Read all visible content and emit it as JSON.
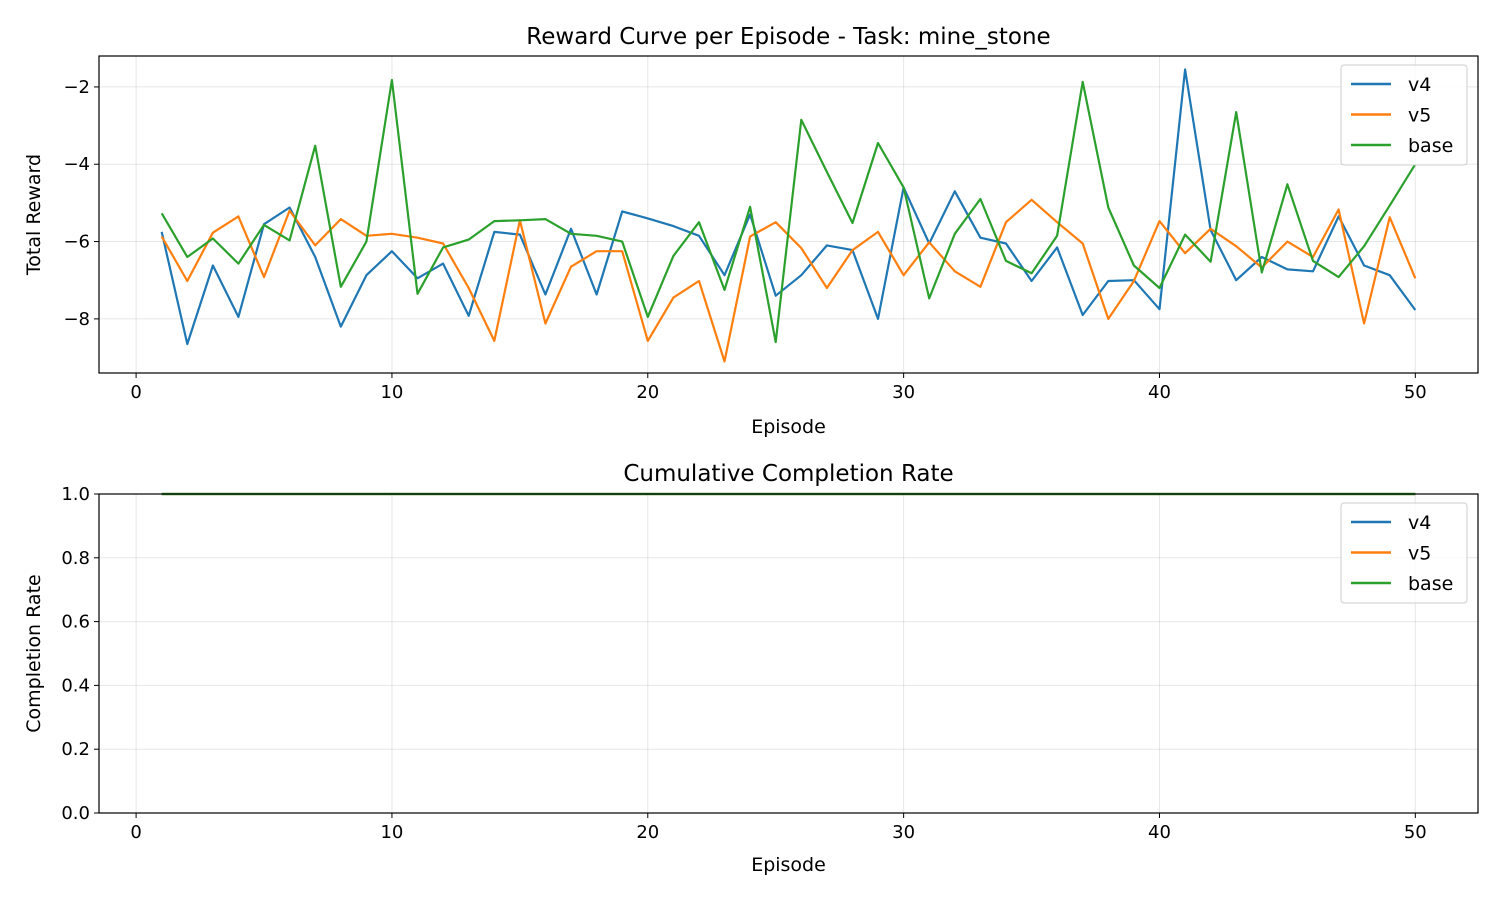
{
  "colors": {
    "v4": "#1f77b4",
    "v5": "#ff7f0e",
    "base": "#2ca02c"
  },
  "chart_data": [
    {
      "type": "line",
      "title": "Reward Curve per Episode - Task: mine_stone",
      "xlabel": "Episode",
      "ylabel": "Total Reward",
      "xlim": [
        -1.45,
        52.45
      ],
      "ylim": [
        -9.4,
        -1.2
      ],
      "xticks": [
        0,
        10,
        20,
        30,
        40,
        50
      ],
      "xtick_labels": [
        "0",
        "10",
        "20",
        "30",
        "40",
        "50"
      ],
      "yticks": [
        -8,
        -6,
        -4,
        -2
      ],
      "ytick_labels": [
        "−8",
        "−6",
        "−4",
        "−2"
      ],
      "grid": true,
      "legend": "top-right",
      "x": [
        1,
        2,
        3,
        4,
        5,
        6,
        7,
        8,
        9,
        10,
        11,
        12,
        13,
        14,
        15,
        16,
        17,
        18,
        19,
        20,
        21,
        22,
        23,
        24,
        25,
        26,
        27,
        28,
        29,
        30,
        31,
        32,
        33,
        34,
        35,
        36,
        37,
        38,
        39,
        40,
        41,
        42,
        43,
        44,
        45,
        46,
        47,
        48,
        49,
        50
      ],
      "series": [
        {
          "name": "v4",
          "color": "#1f77b4",
          "values": [
            -5.75,
            -8.65,
            -6.62,
            -7.95,
            -5.55,
            -5.12,
            -6.4,
            -8.2,
            -6.87,
            -6.25,
            -6.95,
            -6.57,
            -7.92,
            -5.75,
            -5.82,
            -7.37,
            -5.67,
            -7.37,
            -5.22,
            -5.4,
            -5.6,
            -5.85,
            -6.87,
            -5.3,
            -7.4,
            -6.87,
            -6.1,
            -6.22,
            -8.0,
            -4.6,
            -6.05,
            -4.7,
            -5.9,
            -6.05,
            -7.02,
            -6.15,
            -7.9,
            -7.02,
            -7.0,
            -7.75,
            -1.55,
            -5.7,
            -7.0,
            -6.4,
            -6.72,
            -6.77,
            -5.35,
            -6.62,
            -6.87,
            -7.77
          ]
        },
        {
          "name": "v5",
          "color": "#ff7f0e",
          "values": [
            -5.87,
            -7.02,
            -5.77,
            -5.35,
            -6.92,
            -5.2,
            -6.1,
            -5.42,
            -5.85,
            -5.8,
            -5.9,
            -6.05,
            -7.2,
            -8.57,
            -5.45,
            -8.12,
            -6.65,
            -6.25,
            -6.25,
            -8.57,
            -7.45,
            -7.02,
            -9.1,
            -5.87,
            -5.5,
            -6.17,
            -7.2,
            -6.22,
            -5.75,
            -6.87,
            -6.02,
            -6.77,
            -7.17,
            -5.5,
            -4.92,
            -5.5,
            -6.05,
            -8.0,
            -7.02,
            -5.47,
            -6.3,
            -5.67,
            -6.12,
            -6.67,
            -6.0,
            -6.4,
            -5.17,
            -8.12,
            -5.37,
            -6.95
          ]
        },
        {
          "name": "base",
          "color": "#2ca02c",
          "values": [
            -5.27,
            -6.4,
            -5.92,
            -6.57,
            -5.57,
            -5.97,
            -3.52,
            -7.17,
            -6.0,
            -1.82,
            -7.35,
            -6.15,
            -5.95,
            -5.47,
            -5.45,
            -5.42,
            -5.8,
            -5.85,
            -6.0,
            -7.95,
            -6.37,
            -5.5,
            -7.25,
            -5.1,
            -8.6,
            -2.85,
            -4.2,
            -5.52,
            -3.45,
            -4.6,
            -7.47,
            -5.8,
            -4.9,
            -6.5,
            -6.82,
            -5.85,
            -1.87,
            -5.12,
            -6.62,
            -7.2,
            -5.82,
            -6.52,
            -2.65,
            -6.8,
            -4.52,
            -6.5,
            -6.92,
            -6.12,
            -5.07,
            -4.0
          ]
        }
      ]
    },
    {
      "type": "line",
      "title": "Cumulative Completion Rate",
      "xlabel": "Episode",
      "ylabel": "Completion Rate",
      "xlim": [
        -1.45,
        52.45
      ],
      "ylim": [
        0.0,
        1.0
      ],
      "xticks": [
        0,
        10,
        20,
        30,
        40,
        50
      ],
      "xtick_labels": [
        "0",
        "10",
        "20",
        "30",
        "40",
        "50"
      ],
      "yticks": [
        0.0,
        0.2,
        0.4,
        0.6,
        0.8,
        1.0
      ],
      "ytick_labels": [
        "0.0",
        "0.2",
        "0.4",
        "0.6",
        "0.8",
        "1.0"
      ],
      "grid": true,
      "legend": "top-right",
      "x": [
        1,
        2,
        3,
        4,
        5,
        6,
        7,
        8,
        9,
        10,
        11,
        12,
        13,
        14,
        15,
        16,
        17,
        18,
        19,
        20,
        21,
        22,
        23,
        24,
        25,
        26,
        27,
        28,
        29,
        30,
        31,
        32,
        33,
        34,
        35,
        36,
        37,
        38,
        39,
        40,
        41,
        42,
        43,
        44,
        45,
        46,
        47,
        48,
        49,
        50
      ],
      "series": [
        {
          "name": "v4",
          "color": "#1f77b4",
          "values": [
            1,
            1,
            1,
            1,
            1,
            1,
            1,
            1,
            1,
            1,
            1,
            1,
            1,
            1,
            1,
            1,
            1,
            1,
            1,
            1,
            1,
            1,
            1,
            1,
            1,
            1,
            1,
            1,
            1,
            1,
            1,
            1,
            1,
            1,
            1,
            1,
            1,
            1,
            1,
            1,
            1,
            1,
            1,
            1,
            1,
            1,
            1,
            1,
            1,
            1
          ]
        },
        {
          "name": "v5",
          "color": "#ff7f0e",
          "values": [
            1,
            1,
            1,
            1,
            1,
            1,
            1,
            1,
            1,
            1,
            1,
            1,
            1,
            1,
            1,
            1,
            1,
            1,
            1,
            1,
            1,
            1,
            1,
            1,
            1,
            1,
            1,
            1,
            1,
            1,
            1,
            1,
            1,
            1,
            1,
            1,
            1,
            1,
            1,
            1,
            1,
            1,
            1,
            1,
            1,
            1,
            1,
            1,
            1,
            1
          ]
        },
        {
          "name": "base",
          "color": "#2ca02c",
          "values": [
            1,
            1,
            1,
            1,
            1,
            1,
            1,
            1,
            1,
            1,
            1,
            1,
            1,
            1,
            1,
            1,
            1,
            1,
            1,
            1,
            1,
            1,
            1,
            1,
            1,
            1,
            1,
            1,
            1,
            1,
            1,
            1,
            1,
            1,
            1,
            1,
            1,
            1,
            1,
            1,
            1,
            1,
            1,
            1,
            1,
            1,
            1,
            1,
            1,
            1
          ]
        }
      ]
    }
  ]
}
